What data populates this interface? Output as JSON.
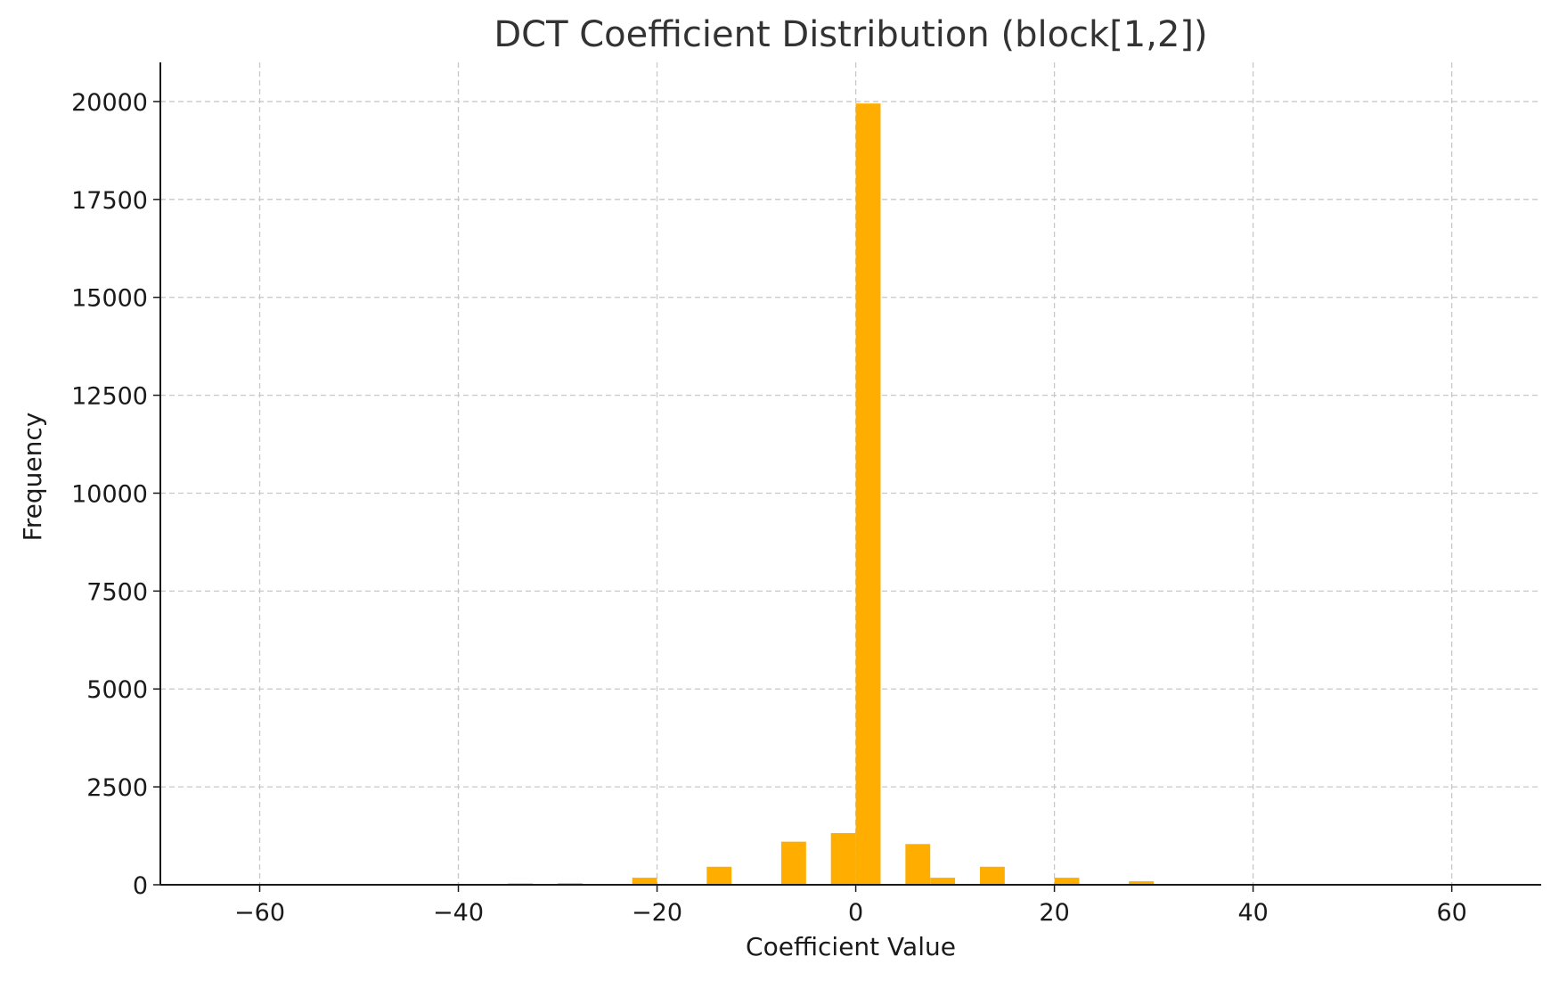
{
  "chart_data": {
    "type": "bar",
    "title": "DCT Coefficient Distribution (block[1,2])",
    "xlabel": "Coefficient Value",
    "ylabel": "Frequency",
    "xlim": [
      -70,
      69
    ],
    "ylim": [
      0,
      21000
    ],
    "x_ticks": [
      -60,
      -40,
      -20,
      0,
      20,
      40,
      60
    ],
    "x_tick_labels": [
      "−60",
      "−40",
      "−20",
      "0",
      "20",
      "40",
      "60"
    ],
    "y_ticks": [
      0,
      2500,
      5000,
      7500,
      10000,
      12500,
      15000,
      17500,
      20000
    ],
    "y_tick_labels": [
      "0",
      "2500",
      "5000",
      "7500",
      "10000",
      "12500",
      "15000",
      "17500",
      "20000"
    ],
    "grid": true,
    "bar_color": "#ffae00",
    "bins": [
      {
        "x0": -35.0,
        "x1": -32.5,
        "value": 35
      },
      {
        "x0": -30.0,
        "x1": -27.5,
        "value": 40
      },
      {
        "x0": -22.5,
        "x1": -20.0,
        "value": 180
      },
      {
        "x0": -15.0,
        "x1": -12.5,
        "value": 460
      },
      {
        "x0": -7.5,
        "x1": -5.0,
        "value": 1100
      },
      {
        "x0": -2.5,
        "x1": 0.0,
        "value": 1320
      },
      {
        "x0": 0.0,
        "x1": 2.5,
        "value": 19950
      },
      {
        "x0": 5.0,
        "x1": 7.5,
        "value": 1040
      },
      {
        "x0": 7.5,
        "x1": 10.0,
        "value": 180
      },
      {
        "x0": 12.5,
        "x1": 15.0,
        "value": 460
      },
      {
        "x0": 20.0,
        "x1": 22.5,
        "value": 180
      },
      {
        "x0": 27.5,
        "x1": 30.0,
        "value": 90
      }
    ]
  }
}
